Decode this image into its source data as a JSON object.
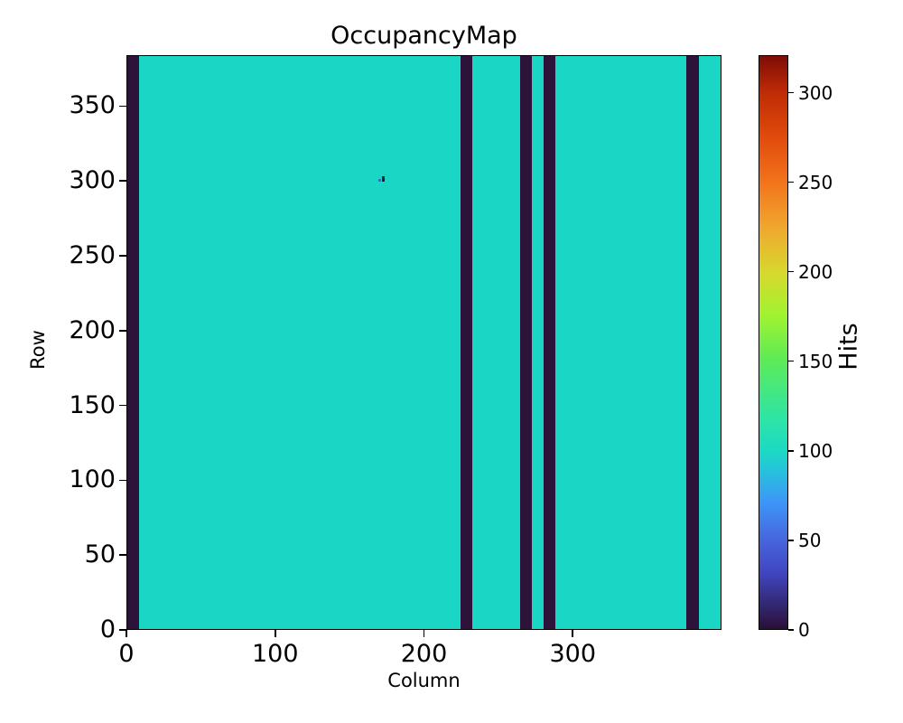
{
  "figure": {
    "background": "#ffffff"
  },
  "chart_data": {
    "type": "heatmap",
    "title": "OccupancyMap",
    "xlabel": "Column",
    "ylabel": "Row",
    "colorbar_label": "Hits",
    "x_range": [
      0,
      400
    ],
    "y_range": [
      0,
      384
    ],
    "x_ticks": [
      0,
      100,
      200,
      300
    ],
    "y_ticks": [
      0,
      50,
      100,
      150,
      200,
      250,
      300,
      350
    ],
    "colorbar_ticks": [
      0,
      50,
      100,
      150,
      200,
      250,
      300
    ],
    "vmin": 0,
    "vmax": 321,
    "colormap": "turbo",
    "grid": false,
    "baseline_value": 100,
    "baseline_color": "#1ad6c4",
    "dead_value": 0,
    "dead_color": "#2d1239",
    "dead_column_ranges": [
      [
        0,
        7
      ],
      [
        224,
        231
      ],
      [
        264,
        271
      ],
      [
        280,
        287
      ],
      [
        376,
        383
      ]
    ],
    "defect_pixels": [
      {
        "col": 171,
        "row": 300,
        "w": 2,
        "h": 4,
        "color": "#2d1239"
      },
      {
        "col": 169,
        "row": 300,
        "w": 1.6,
        "h": 2,
        "color": "#4563cf"
      }
    ],
    "colorbar_gradient": [
      {
        "t": 0.0,
        "color": "#2a1038"
      },
      {
        "t": 0.1,
        "color": "#4147c2"
      },
      {
        "t": 0.16,
        "color": "#4668e0"
      },
      {
        "t": 0.22,
        "color": "#3d95f8"
      },
      {
        "t": 0.28,
        "color": "#25c5d9"
      },
      {
        "t": 0.31,
        "color": "#1bd9c4"
      },
      {
        "t": 0.37,
        "color": "#2fe5a4"
      },
      {
        "t": 0.47,
        "color": "#5deb56"
      },
      {
        "t": 0.55,
        "color": "#a2f32f"
      },
      {
        "t": 0.62,
        "color": "#d6d92e"
      },
      {
        "t": 0.7,
        "color": "#f0a82e"
      },
      {
        "t": 0.78,
        "color": "#f2731c"
      },
      {
        "t": 0.86,
        "color": "#e04a0c"
      },
      {
        "t": 0.935,
        "color": "#c02c06"
      },
      {
        "t": 1.0,
        "color": "#7d0d05"
      }
    ]
  }
}
